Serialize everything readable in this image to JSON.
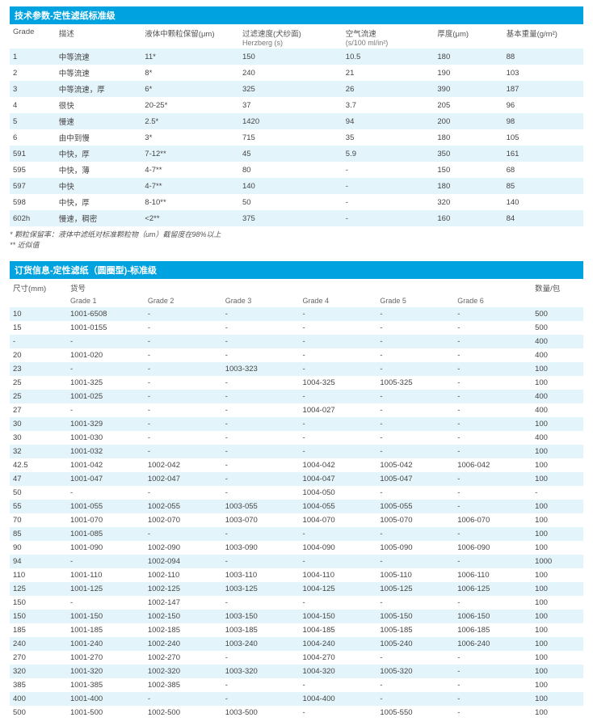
{
  "section1": {
    "title": "技术参数-定性滤纸标准级",
    "headers": {
      "grade": "Grade",
      "desc": "描述",
      "retention": "液体中颗粒保留(μm)",
      "filtration": "过滤速度(犬纱面)",
      "filtration_sub": "Herzberg (s)",
      "airflow": "空气流速",
      "airflow_sub": "(s/100 ml/in²)",
      "thickness": "厚度(μm)",
      "weight": "基本重量(g/m²)"
    },
    "rows": [
      {
        "g": "1",
        "d": "中等流速",
        "r": "11*",
        "f": "150",
        "a": "10.5",
        "t": "180",
        "w": "88"
      },
      {
        "g": "2",
        "d": "中等流速",
        "r": "8*",
        "f": "240",
        "a": "21",
        "t": "190",
        "w": "103"
      },
      {
        "g": "3",
        "d": "中等流速，厚",
        "r": "6*",
        "f": "325",
        "a": "26",
        "t": "390",
        "w": "187"
      },
      {
        "g": "4",
        "d": "很快",
        "r": "20-25*",
        "f": "37",
        "a": "3.7",
        "t": "205",
        "w": "96"
      },
      {
        "g": "5",
        "d": "慢速",
        "r": "2.5*",
        "f": "1420",
        "a": "94",
        "t": "200",
        "w": "98"
      },
      {
        "g": "6",
        "d": "由中到慢",
        "r": "3*",
        "f": "715",
        "a": "35",
        "t": "180",
        "w": "105"
      },
      {
        "g": "591",
        "d": "中快，厚",
        "r": "7-12**",
        "f": "45",
        "a": "5.9",
        "t": "350",
        "w": "161"
      },
      {
        "g": "595",
        "d": "中快，薄",
        "r": "4-7**",
        "f": "80",
        "a": "-",
        "t": "150",
        "w": "68"
      },
      {
        "g": "597",
        "d": "中快",
        "r": "4-7**",
        "f": "140",
        "a": "-",
        "t": "180",
        "w": "85"
      },
      {
        "g": "598",
        "d": "中快，厚",
        "r": "8-10**",
        "f": "50",
        "a": "-",
        "t": "320",
        "w": "140"
      },
      {
        "g": "602h",
        "d": "慢速，稠密",
        "r": "<2**",
        "f": "375",
        "a": "-",
        "t": "160",
        "w": "84"
      }
    ],
    "footnote1": "* 颗粒保留率：液体中滤纸对标准颗粒物（um）截留度在98%以上",
    "footnote2": "** 近似值"
  },
  "section2": {
    "title": "订货信息-定性滤纸（圆圈型)-标准级",
    "headers": {
      "size": "尺寸(mm)",
      "sku": "货号",
      "qty": "数量/包"
    },
    "subheaders": [
      "Grade 1",
      "Grade 2",
      "Grade 3",
      "Grade 4",
      "Grade 5",
      "Grade 6"
    ],
    "rows": [
      {
        "s": "10",
        "c": [
          "1001-6508",
          "-",
          "-",
          "-",
          "-",
          "-"
        ],
        "q": "500"
      },
      {
        "s": "15",
        "c": [
          "1001-0155",
          "-",
          "-",
          "-",
          "-",
          "-"
        ],
        "q": "500"
      },
      {
        "s": "-",
        "c": [
          "-",
          "-",
          "-",
          "-",
          "-",
          "-"
        ],
        "q": "400"
      },
      {
        "s": "20",
        "c": [
          "1001-020",
          "-",
          "-",
          "-",
          "-",
          "-"
        ],
        "q": "400"
      },
      {
        "s": "23",
        "c": [
          "-",
          "-",
          "1003-323",
          "-",
          "-",
          "-"
        ],
        "q": "100"
      },
      {
        "s": "25",
        "c": [
          "1001-325",
          "-",
          "-",
          "1004-325",
          "1005-325",
          "-"
        ],
        "q": "100"
      },
      {
        "s": "25",
        "c": [
          "1001-025",
          "-",
          "-",
          "-",
          "-",
          "-"
        ],
        "q": "400"
      },
      {
        "s": "27",
        "c": [
          "-",
          "-",
          "-",
          "1004-027",
          "-",
          "-"
        ],
        "q": "400"
      },
      {
        "s": "30",
        "c": [
          "1001-329",
          "-",
          "-",
          "-",
          "-",
          "-"
        ],
        "q": "100"
      },
      {
        "s": "30",
        "c": [
          "1001-030",
          "-",
          "-",
          "-",
          "-",
          "-"
        ],
        "q": "400"
      },
      {
        "s": "32",
        "c": [
          "1001-032",
          "-",
          "-",
          "-",
          "-",
          "-"
        ],
        "q": "100"
      },
      {
        "s": "42.5",
        "c": [
          "1001-042",
          "1002-042",
          "-",
          "1004-042",
          "1005-042",
          "1006-042"
        ],
        "q": "100"
      },
      {
        "s": "47",
        "c": [
          "1001-047",
          "1002-047",
          "-",
          "1004-047",
          "1005-047",
          "-"
        ],
        "q": "100"
      },
      {
        "s": "50",
        "c": [
          "-",
          "-",
          "-",
          "1004-050",
          "-",
          "-"
        ],
        "q": "-"
      },
      {
        "s": "55",
        "c": [
          "1001-055",
          "1002-055",
          "1003-055",
          "1004-055",
          "1005-055",
          "-"
        ],
        "q": "100"
      },
      {
        "s": "70",
        "c": [
          "1001-070",
          "1002-070",
          "1003-070",
          "1004-070",
          "1005-070",
          "1006-070"
        ],
        "q": "100"
      },
      {
        "s": "85",
        "c": [
          "1001-085",
          "-",
          "-",
          "-",
          "-",
          "-"
        ],
        "q": "100"
      },
      {
        "s": "90",
        "c": [
          "1001-090",
          "1002-090",
          "1003-090",
          "1004-090",
          "1005-090",
          "1006-090"
        ],
        "q": "100"
      },
      {
        "s": "94",
        "c": [
          "-",
          "1002-094",
          "-",
          "-",
          "-",
          "-"
        ],
        "q": "1000"
      },
      {
        "s": "110",
        "c": [
          "1001-110",
          "1002-110",
          "1003-110",
          "1004-110",
          "1005-110",
          "1006-110"
        ],
        "q": "100"
      },
      {
        "s": "125",
        "c": [
          "1001-125",
          "1002-125",
          "1003-125",
          "1004-125",
          "1005-125",
          "1006-125"
        ],
        "q": "100"
      },
      {
        "s": "150",
        "c": [
          "-",
          "1002-147",
          "-",
          "-",
          "-",
          "-"
        ],
        "q": "100"
      },
      {
        "s": "150",
        "c": [
          "1001-150",
          "1002-150",
          "1003-150",
          "1004-150",
          "1005-150",
          "1006-150"
        ],
        "q": "100"
      },
      {
        "s": "185",
        "c": [
          "1001-185",
          "1002-185",
          "1003-185",
          "1004-185",
          "1005-185",
          "1006-185"
        ],
        "q": "100"
      },
      {
        "s": "240",
        "c": [
          "1001-240",
          "1002-240",
          "1003-240",
          "1004-240",
          "1005-240",
          "1006-240"
        ],
        "q": "100"
      },
      {
        "s": "270",
        "c": [
          "1001-270",
          "1002-270",
          "-",
          "1004-270",
          "-",
          "-"
        ],
        "q": "100"
      },
      {
        "s": "320",
        "c": [
          "1001-320",
          "1002-320",
          "1003-320",
          "1004-320",
          "1005-320",
          "-"
        ],
        "q": "100"
      },
      {
        "s": "385",
        "c": [
          "1001-385",
          "1002-385",
          "-",
          "-",
          "-",
          "-"
        ],
        "q": "100"
      },
      {
        "s": "400",
        "c": [
          "1001-400",
          "-",
          "-",
          "1004-400",
          "-",
          "-"
        ],
        "q": "100"
      },
      {
        "s": "500",
        "c": [
          "1001-500",
          "1002-500",
          "1003-500",
          "-",
          "1005-550",
          "-"
        ],
        "q": "100"
      }
    ]
  },
  "colors": {
    "header_bg": "#00a3e0",
    "row_alt": "#e4f4fb"
  }
}
